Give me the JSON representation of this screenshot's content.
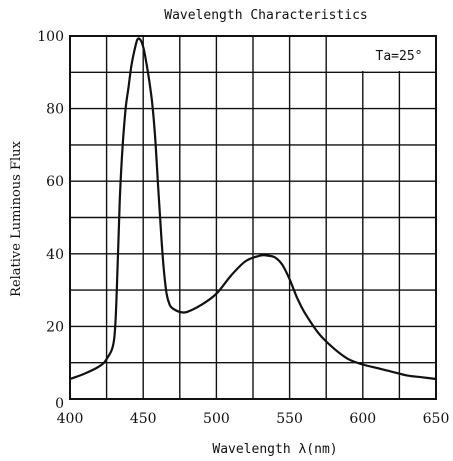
{
  "chart_data": {
    "type": "line",
    "title": "Wavelength Characteristics",
    "xlabel": "Wavelength λ(nm)",
    "ylabel": "Relative Luminous Flux",
    "annotation": "Ta=25°",
    "xlim": [
      400,
      650
    ],
    "ylim": [
      0,
      100
    ],
    "x_ticks": [
      "400",
      "450",
      "500",
      "550",
      "600",
      "650"
    ],
    "y_ticks": [
      "0",
      "20",
      "40",
      "60",
      "80",
      "100"
    ],
    "grid": true,
    "line_color": "#111111",
    "series": [
      {
        "x": [
          400,
          410,
          420,
          425,
          430,
          432,
          434,
          436,
          438,
          440,
          442,
          444,
          446,
          448,
          450,
          452,
          454,
          456,
          458,
          460,
          462,
          464,
          466,
          468,
          470,
          475,
          480,
          490,
          500,
          510,
          520,
          530,
          535,
          540,
          545,
          550,
          555,
          560,
          570,
          580,
          590,
          600,
          610,
          620,
          630,
          640,
          650
        ],
        "y": [
          5.5,
          7,
          9,
          11,
          16,
          30,
          55,
          70,
          80,
          86,
          92,
          96,
          99,
          99,
          97,
          93,
          88,
          82,
          73,
          60,
          47,
          36,
          29,
          26,
          25,
          24,
          24,
          26,
          29,
          34,
          38,
          39.5,
          39.5,
          39,
          37,
          33,
          28,
          24,
          18,
          14,
          11,
          9.5,
          8.5,
          7.5,
          6.5,
          6,
          5.5
        ]
      }
    ]
  }
}
